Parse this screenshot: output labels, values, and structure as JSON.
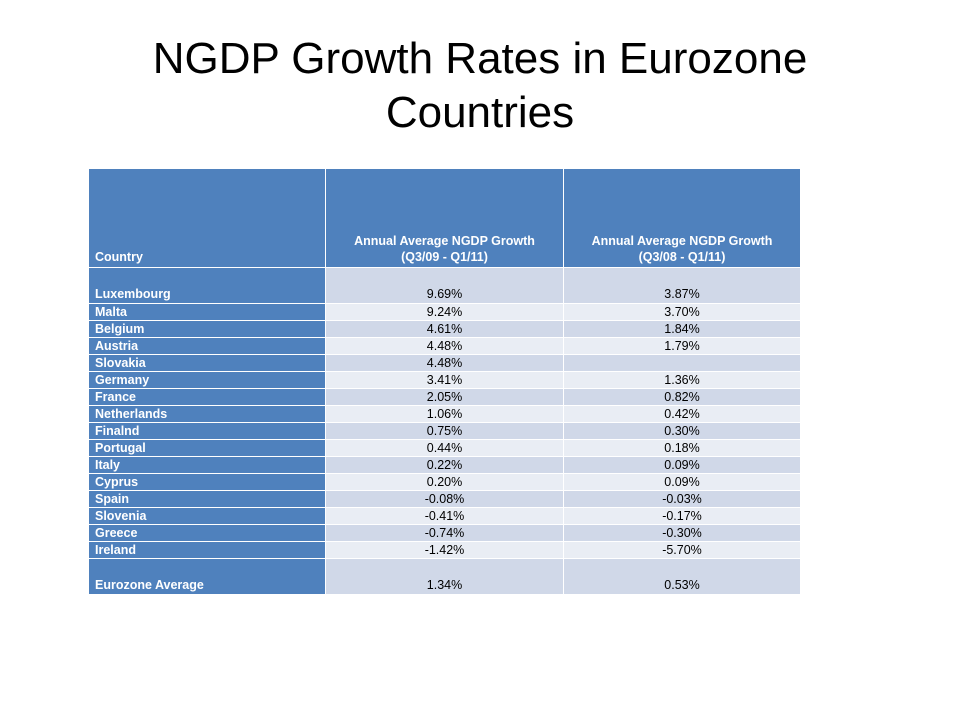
{
  "slide": {
    "title_line1": "NGDP Growth Rates in Eurozone",
    "title_line2": "Countries"
  },
  "colors": {
    "header_blue": "#4F81BD",
    "row_band_dark": "#D0D8E8",
    "row_band_light": "#E9EDF4"
  },
  "table": {
    "headers": {
      "country": "Country",
      "col1_line1": "Annual Average NGDP Growth",
      "col1_line2": "(Q3/09 - Q1/11)",
      "col2_line1": "Annual Average NGDP Growth",
      "col2_line2": "(Q3/08 - Q1/11)"
    },
    "rows": [
      {
        "country": "Luxembourg",
        "g1": "9.69%",
        "g2": "3.87%"
      },
      {
        "country": "Malta",
        "g1": "9.24%",
        "g2": "3.70%"
      },
      {
        "country": "Belgium",
        "g1": "4.61%",
        "g2": "1.84%"
      },
      {
        "country": "Austria",
        "g1": "4.48%",
        "g2": "1.79%"
      },
      {
        "country": "Slovakia",
        "g1": "4.48%",
        "g2": ""
      },
      {
        "country": "Germany",
        "g1": "3.41%",
        "g2": "1.36%"
      },
      {
        "country": "France",
        "g1": "2.05%",
        "g2": "0.82%"
      },
      {
        "country": "Netherlands",
        "g1": "1.06%",
        "g2": "0.42%"
      },
      {
        "country": "Finalnd",
        "g1": "0.75%",
        "g2": "0.30%"
      },
      {
        "country": "Portugal",
        "g1": "0.44%",
        "g2": "0.18%"
      },
      {
        "country": "Italy",
        "g1": "0.22%",
        "g2": "0.09%"
      },
      {
        "country": "Cyprus",
        "g1": "0.20%",
        "g2": "0.09%"
      },
      {
        "country": "Spain",
        "g1": "-0.08%",
        "g2": "-0.03%"
      },
      {
        "country": "Slovenia",
        "g1": "-0.41%",
        "g2": "-0.17%"
      },
      {
        "country": "Greece",
        "g1": "-0.74%",
        "g2": "-0.30%"
      },
      {
        "country": "Ireland",
        "g1": "-1.42%",
        "g2": "-5.70%"
      }
    ],
    "average": {
      "country": "Eurozone Average",
      "g1": "1.34%",
      "g2": "0.53%"
    }
  }
}
